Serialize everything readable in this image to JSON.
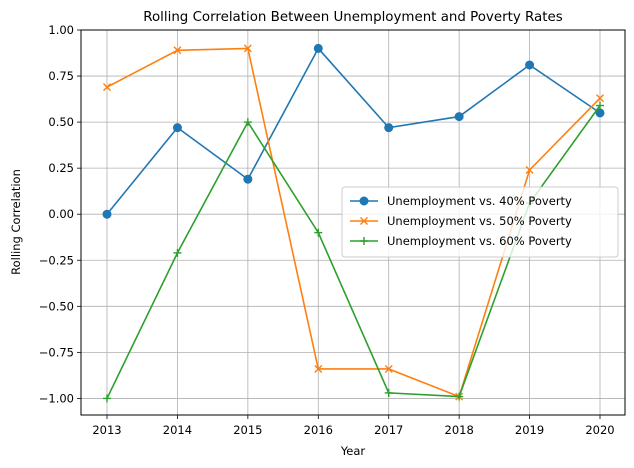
{
  "chart_data": {
    "type": "line",
    "title": "Rolling Correlation Between Unemployment and Poverty Rates",
    "xlabel": "Year",
    "ylabel": "Rolling Correlation",
    "x": [
      "2013",
      "2014",
      "2015",
      "2016",
      "2017",
      "2018",
      "2019",
      "2020"
    ],
    "ylim": [
      -1.09,
      1.0
    ],
    "yticks": [
      "1.00",
      "0.75",
      "0.50",
      "0.25",
      "0.00",
      "−0.25",
      "−0.50",
      "−0.75",
      "−1.00"
    ],
    "ytick_values": [
      1.0,
      0.75,
      0.5,
      0.25,
      0.0,
      -0.25,
      -0.5,
      -0.75,
      -1.0
    ],
    "grid": true,
    "legend_position": "center-right",
    "series": [
      {
        "name": "Unemployment vs. 40% Poverty",
        "color": "#1f77b4",
        "marker": "circle",
        "values": [
          0.0,
          0.47,
          0.19,
          0.9,
          0.47,
          0.53,
          0.81,
          0.55
        ]
      },
      {
        "name": "Unemployment vs. 50% Poverty",
        "color": "#ff7f0e",
        "marker": "x",
        "values": [
          0.69,
          0.89,
          0.9,
          -0.84,
          -0.84,
          -0.99,
          0.24,
          0.63
        ]
      },
      {
        "name": "Unemployment vs. 60% Poverty",
        "color": "#2ca02c",
        "marker": "plus",
        "values": [
          -1.0,
          -0.21,
          0.5,
          -0.1,
          -0.97,
          -0.99,
          0.06,
          0.59
        ]
      }
    ]
  }
}
